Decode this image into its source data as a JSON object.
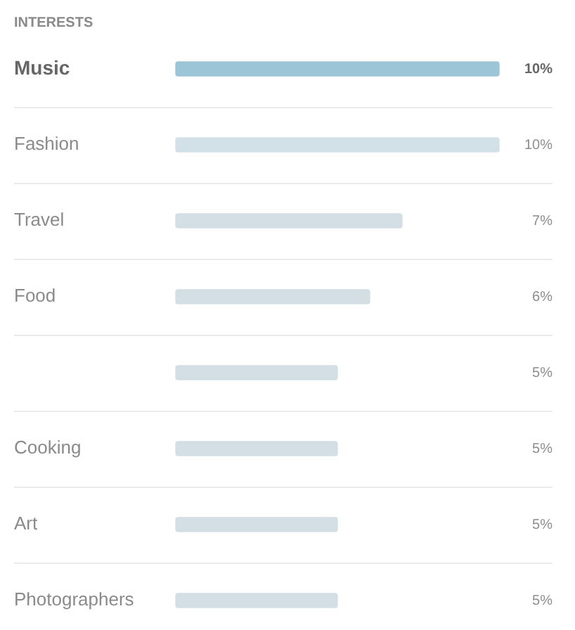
{
  "chart_data": {
    "type": "bar",
    "orientation": "horizontal",
    "title": "INTERESTS",
    "categories": [
      "Music",
      "Fashion",
      "Travel",
      "Food",
      null,
      "Cooking",
      "Art",
      "Photographers"
    ],
    "values": [
      10,
      10,
      7,
      6,
      5,
      5,
      5,
      5
    ],
    "value_labels": [
      "10%",
      "10%",
      "7%",
      "6%",
      "5%",
      "5%",
      "5%",
      "5%"
    ],
    "colors": [
      "#9cc5d7",
      "#d2e0e7",
      "#d3dfe5",
      "#d3dfe5",
      "#d3dfe5",
      "#d3dfe5",
      "#d3dfe5",
      "#d3dfe5"
    ],
    "grid": "y"
  }
}
